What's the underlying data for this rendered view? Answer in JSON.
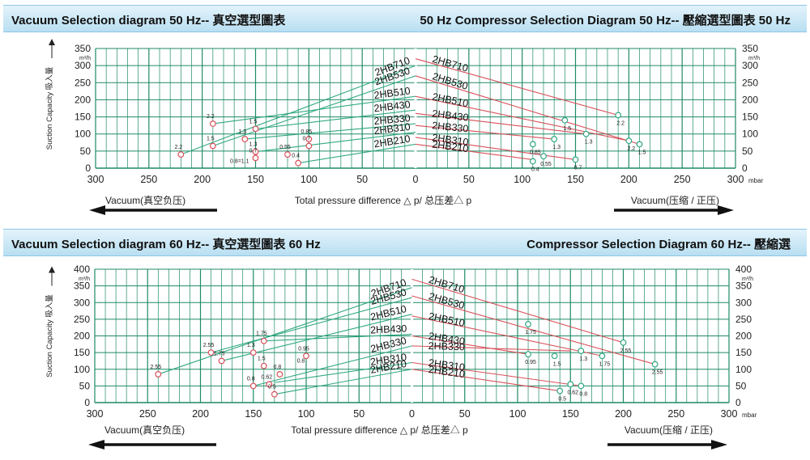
{
  "banners": [
    {
      "left": "Vacuum Selection diagram 50 Hz-- 真空選型圖表",
      "right": "50 Hz Compressor Selection Diagram 50 Hz-- 壓縮選型圖表 50 Hz"
    },
    {
      "left": "Vacuum Selection diagram 60 Hz-- 真空選型圖表 60 Hz",
      "right": "Compressor Selection Diagram 60 Hz-- 壓縮選"
    }
  ],
  "labels": {
    "y_axis": "Suction Capacity 吸入量",
    "unit": "m³/h",
    "x_axis": "Total pressure difference △ p/ 总压差△ p",
    "x_unit": "mbar",
    "vacuum": "Vacuum(真空负压)",
    "compressor": "Vacuum(压缩 / 正压)"
  },
  "colors": {
    "grid": "#1f8a66",
    "vacuum_line": "#2fa882",
    "compressor_line": "#d9505a",
    "vacuum_marker": "#d9505a",
    "compressor_marker": "#2fa882",
    "banner": "#cfe9f6"
  },
  "chart_data": [
    {
      "type": "line",
      "title": "Vacuum Selection diagram 50 Hz / 50 Hz Compressor Selection Diagram 50 Hz",
      "xlabel": "Total pressure difference △ p/ 总压差△ p",
      "ylabel": "Suction Capacity 吸入量",
      "x_ticks": [
        "300",
        "250",
        "200",
        "150",
        "100",
        "50",
        "0",
        "50",
        "100",
        "150",
        "200",
        "250",
        "300"
      ],
      "y_ticks": [
        "0",
        "50",
        "100",
        "150",
        "200",
        "250",
        "300",
        "350"
      ],
      "ylim": [
        0,
        350
      ],
      "grid": true,
      "vacuum_series": [
        {
          "name": "2HB710",
          "x": [
            0,
            220
          ],
          "y": [
            300,
            40
          ]
        },
        {
          "name": "2HB530",
          "x": [
            0,
            190
          ],
          "y": [
            270,
            65
          ]
        },
        {
          "name": "2HB510",
          "x": [
            0,
            190
          ],
          "y": [
            210,
            130
          ]
        },
        {
          "name": "2HB430",
          "x": [
            0,
            150
          ],
          "y": [
            170,
            115
          ]
        },
        {
          "name": "2HB330",
          "x": [
            0,
            160
          ],
          "y": [
            130,
            85
          ]
        },
        {
          "name": "2HB310",
          "x": [
            0,
            150
          ],
          "y": [
            105,
            48
          ]
        },
        {
          "name": "2HB210",
          "x": [
            0,
            110
          ],
          "y": [
            70,
            15
          ]
        }
      ],
      "compressor_series": [
        {
          "name": "2HB710",
          "x": [
            0,
            190
          ],
          "y": [
            320,
            155
          ]
        },
        {
          "name": "2HB530",
          "x": [
            0,
            210
          ],
          "y": [
            270,
            70
          ]
        },
        {
          "name": "2HB510",
          "x": [
            0,
            200
          ],
          "y": [
            210,
            80
          ]
        },
        {
          "name": "2HB430",
          "x": [
            0,
            160
          ],
          "y": [
            160,
            100
          ]
        },
        {
          "name": "2HB330",
          "x": [
            0,
            130
          ],
          "y": [
            125,
            85
          ]
        },
        {
          "name": "2HB310",
          "x": [
            0,
            150
          ],
          "y": [
            90,
            25
          ]
        },
        {
          "name": "2HB210",
          "x": [
            0,
            110
          ],
          "y": [
            70,
            25
          ]
        }
      ],
      "vacuum_points": [
        {
          "x": 220,
          "y": 40,
          "label": "2.2"
        },
        {
          "x": 190,
          "y": 130,
          "label": "2.2"
        },
        {
          "x": 190,
          "y": 65,
          "label": "1.5"
        },
        {
          "x": 160,
          "y": 85,
          "label": "1.3"
        },
        {
          "x": 150,
          "y": 115,
          "label": "1.5"
        },
        {
          "x": 150,
          "y": 48,
          "label": "1.3"
        },
        {
          "x": 150,
          "y": 30,
          "label": "0.7"
        },
        {
          "x": 100,
          "y": 85,
          "label": "0.85"
        },
        {
          "x": 100,
          "y": 65,
          "label": "0.7"
        },
        {
          "x": 120,
          "y": 40,
          "label": "0.55"
        },
        {
          "x": 110,
          "y": 15,
          "label": "0.4"
        }
      ],
      "compressor_points": [
        {
          "x": 190,
          "y": 155,
          "label": "2.2"
        },
        {
          "x": 200,
          "y": 80,
          "label": "2.2"
        },
        {
          "x": 210,
          "y": 70,
          "label": "1.5"
        },
        {
          "x": 140,
          "y": 140,
          "label": "1.5"
        },
        {
          "x": 160,
          "y": 100,
          "label": "1.3"
        },
        {
          "x": 130,
          "y": 85,
          "label": "1.3"
        },
        {
          "x": 110,
          "y": 70,
          "label": "0.85"
        },
        {
          "x": 120,
          "y": 35,
          "label": "0.55"
        },
        {
          "x": 150,
          "y": 25,
          "label": "0.7"
        },
        {
          "x": 110,
          "y": 20,
          "label": "0.4"
        }
      ],
      "extra_labels": [
        {
          "text": "0.8=1.1",
          "x": 165,
          "y": 15
        }
      ]
    },
    {
      "type": "line",
      "title": "Vacuum Selection diagram 60 Hz / Compressor Selection Diagram 60 Hz",
      "xlabel": "Total pressure difference △ p/ 总压差△ p",
      "ylabel": "Suction Capacity 吸入量",
      "x_ticks": [
        "300",
        "250",
        "200",
        "150",
        "100",
        "50",
        "0",
        "50",
        "100",
        "150",
        "200",
        "250",
        "300"
      ],
      "y_ticks": [
        "0",
        "50",
        "100",
        "150",
        "200",
        "250",
        "300",
        "350",
        "400"
      ],
      "ylim": [
        0,
        400
      ],
      "grid": true,
      "vacuum_series": [
        {
          "name": "2HB710",
          "x": [
            0,
            240
          ],
          "y": [
            345,
            85
          ]
        },
        {
          "name": "2HB530",
          "x": [
            0,
            190
          ],
          "y": [
            315,
            150
          ]
        },
        {
          "name": "2HB510",
          "x": [
            0,
            180
          ],
          "y": [
            265,
            125
          ]
        },
        {
          "name": "2HB430",
          "x": [
            0,
            140
          ],
          "y": [
            205,
            185
          ]
        },
        {
          "name": "2HB330",
          "x": [
            0,
            150
          ],
          "y": [
            170,
            50
          ]
        },
        {
          "name": "2HB310",
          "x": [
            0,
            130
          ],
          "y": [
            120,
            60
          ]
        },
        {
          "name": "2HB210",
          "x": [
            0,
            130
          ],
          "y": [
            100,
            25
          ]
        }
      ],
      "compressor_series": [
        {
          "name": "2HB710",
          "x": [
            0,
            200
          ],
          "y": [
            370,
            180
          ]
        },
        {
          "name": "2HB530",
          "x": [
            0,
            230
          ],
          "y": [
            320,
            115
          ]
        },
        {
          "name": "2HB510",
          "x": [
            0,
            180
          ],
          "y": [
            260,
            140
          ]
        },
        {
          "name": "2HB430",
          "x": [
            0,
            110
          ],
          "y": [
            200,
            145
          ]
        },
        {
          "name": "2HB330",
          "x": [
            0,
            150
          ],
          "y": [
            170,
            155
          ]
        },
        {
          "name": "2HB310",
          "x": [
            0,
            160
          ],
          "y": [
            120,
            50
          ]
        },
        {
          "name": "2HB210",
          "x": [
            0,
            140
          ],
          "y": [
            100,
            35
          ]
        }
      ],
      "vacuum_points": [
        {
          "x": 240,
          "y": 85,
          "label": "2.55"
        },
        {
          "x": 190,
          "y": 150,
          "label": "2.55"
        },
        {
          "x": 180,
          "y": 125,
          "label": "1.75"
        },
        {
          "x": 140,
          "y": 185,
          "label": "1.75"
        },
        {
          "x": 150,
          "y": 150,
          "label": "1.3"
        },
        {
          "x": 140,
          "y": 110,
          "label": "1.5"
        },
        {
          "x": 100,
          "y": 140,
          "label": "0.95"
        },
        {
          "x": 125,
          "y": 85,
          "label": "0.8"
        },
        {
          "x": 135,
          "y": 55,
          "label": "0.62"
        },
        {
          "x": 150,
          "y": 50,
          "label": "0.8"
        },
        {
          "x": 130,
          "y": 25,
          "label": "0.5"
        }
      ],
      "compressor_points": [
        {
          "x": 200,
          "y": 180,
          "label": "2.55"
        },
        {
          "x": 230,
          "y": 115,
          "label": "2.55"
        },
        {
          "x": 180,
          "y": 140,
          "label": "1.75"
        },
        {
          "x": 110,
          "y": 235,
          "label": "1.75"
        },
        {
          "x": 160,
          "y": 155,
          "label": "1.3"
        },
        {
          "x": 135,
          "y": 140,
          "label": "1.5"
        },
        {
          "x": 110,
          "y": 145,
          "label": "0.95"
        },
        {
          "x": 150,
          "y": 55,
          "label": "0.62"
        },
        {
          "x": 160,
          "y": 50,
          "label": "0.8"
        },
        {
          "x": 140,
          "y": 35,
          "label": "0.5"
        }
      ],
      "extra_labels": [
        {
          "text": "0.8",
          "x": 105,
          "y": 120
        }
      ]
    }
  ]
}
